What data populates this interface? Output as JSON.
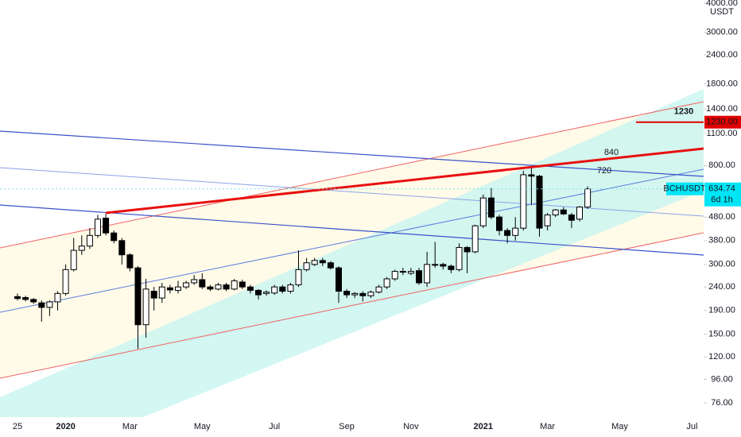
{
  "chart_data": {
    "type": "candlestick",
    "symbol": "BCHUSDT",
    "currency": "USDT",
    "countdown": "6d 1h",
    "log_scale": true,
    "grid": false,
    "up_color": "#ffffff",
    "down_color": "#000000",
    "wick_color": "#000000",
    "categories": [
      "25",
      null,
      null,
      null,
      null,
      null,
      "2020",
      null,
      null,
      null,
      null,
      null,
      null,
      null,
      "Mar",
      null,
      null,
      null,
      null,
      null,
      null,
      null,
      null,
      "May",
      null,
      null,
      null,
      null,
      null,
      null,
      null,
      null,
      "Jul",
      null,
      null,
      null,
      null,
      null,
      null,
      null,
      null,
      "Sep",
      null,
      null,
      null,
      null,
      null,
      null,
      null,
      "Nov",
      null,
      null,
      null,
      null,
      null,
      null,
      null,
      null,
      "2021",
      null,
      null,
      null,
      null,
      null,
      null,
      null,
      "Mar",
      null,
      null,
      null,
      null,
      null,
      null,
      null,
      null,
      "May",
      null,
      null,
      null,
      null,
      null,
      null,
      null,
      null,
      "Jul",
      null
    ],
    "open": [
      218,
      216,
      212,
      205,
      196,
      207,
      225,
      285,
      345,
      360,
      400,
      475,
      410,
      380,
      330,
      290,
      165,
      230,
      215,
      238,
      232,
      240,
      250,
      258,
      240,
      235,
      245,
      235,
      252,
      240,
      232,
      225,
      226,
      240,
      230,
      245,
      285,
      300,
      312,
      305,
      290,
      230,
      222,
      225,
      220,
      228,
      240,
      260,
      280,
      275,
      282,
      250,
      300,
      300,
      295,
      285,
      355,
      340,
      440,
      580,
      480,
      420,
      400,
      430,
      730,
      720,
      440,
      490,
      515,
      490,
      470,
      530,
      null,
      null,
      null,
      null,
      null,
      null,
      null,
      null,
      null,
      null,
      null,
      null,
      null,
      null
    ],
    "high": [
      225,
      220,
      215,
      210,
      210,
      230,
      300,
      390,
      400,
      430,
      490,
      495,
      420,
      390,
      335,
      295,
      260,
      240,
      250,
      245,
      255,
      255,
      270,
      275,
      245,
      250,
      250,
      260,
      258,
      245,
      235,
      232,
      245,
      245,
      250,
      345,
      320,
      320,
      320,
      310,
      295,
      235,
      228,
      230,
      232,
      245,
      265,
      285,
      290,
      290,
      290,
      340,
      375,
      305,
      300,
      370,
      360,
      445,
      600,
      640,
      490,
      430,
      480,
      760,
      780,
      730,
      500,
      520,
      530,
      500,
      535,
      650,
      null,
      null,
      null,
      null,
      null,
      null,
      null,
      null,
      null,
      null,
      null,
      null,
      null,
      null
    ],
    "low": [
      210,
      208,
      203,
      170,
      180,
      190,
      220,
      280,
      330,
      350,
      390,
      400,
      370,
      300,
      280,
      130,
      145,
      190,
      205,
      225,
      225,
      235,
      245,
      235,
      230,
      232,
      230,
      232,
      235,
      225,
      212,
      220,
      222,
      225,
      225,
      240,
      280,
      295,
      295,
      285,
      205,
      215,
      215,
      208,
      215,
      225,
      235,
      255,
      270,
      270,
      245,
      240,
      290,
      285,
      275,
      280,
      275,
      335,
      430,
      470,
      400,
      370,
      380,
      420,
      540,
      395,
      420,
      480,
      490,
      430,
      460,
      520,
      null,
      null,
      null,
      null,
      null,
      null,
      null,
      null,
      null,
      null,
      null,
      null,
      null,
      null
    ],
    "close": [
      214,
      212,
      207,
      196,
      207,
      225,
      285,
      345,
      360,
      400,
      470,
      410,
      380,
      330,
      290,
      165,
      235,
      215,
      240,
      233,
      240,
      250,
      258,
      240,
      235,
      245,
      235,
      255,
      240,
      232,
      222,
      228,
      240,
      230,
      245,
      285,
      305,
      312,
      305,
      290,
      230,
      222,
      225,
      220,
      228,
      240,
      260,
      280,
      278,
      280,
      250,
      300,
      300,
      295,
      285,
      355,
      340,
      440,
      580,
      480,
      420,
      400,
      430,
      730,
      720,
      430,
      490,
      515,
      495,
      465,
      530,
      634.74,
      null,
      null,
      null,
      null,
      null,
      null,
      null,
      null,
      null,
      null,
      null,
      null,
      null,
      null
    ],
    "ylim": [
      66,
      4130
    ],
    "yticks": [
      {
        "value": 76,
        "label": "76.00"
      },
      {
        "value": 96,
        "label": "96.00"
      },
      {
        "value": 120,
        "label": "120.00"
      },
      {
        "value": 150,
        "label": "150.00"
      },
      {
        "value": 190,
        "label": "190.00"
      },
      {
        "value": 240,
        "label": "240.00"
      },
      {
        "value": 300,
        "label": "300.00"
      },
      {
        "value": 380,
        "label": "380.00"
      },
      {
        "value": 480,
        "label": "480.00"
      },
      {
        "value": 800,
        "label": "800.00"
      },
      {
        "value": 1100,
        "label": "1100.00"
      },
      {
        "value": 1400,
        "label": "1400.00"
      },
      {
        "value": 1800,
        "label": "1800.00"
      },
      {
        "value": 2400,
        "label": "2400.00"
      },
      {
        "value": 3000,
        "label": "3000.00"
      },
      {
        "value": 4000,
        "label": "4000.00"
      }
    ],
    "horizontal_line": {
      "value": 1230,
      "label": "1230.00",
      "color": "#e00000"
    },
    "annotations": [
      840,
      720
    ]
  }
}
